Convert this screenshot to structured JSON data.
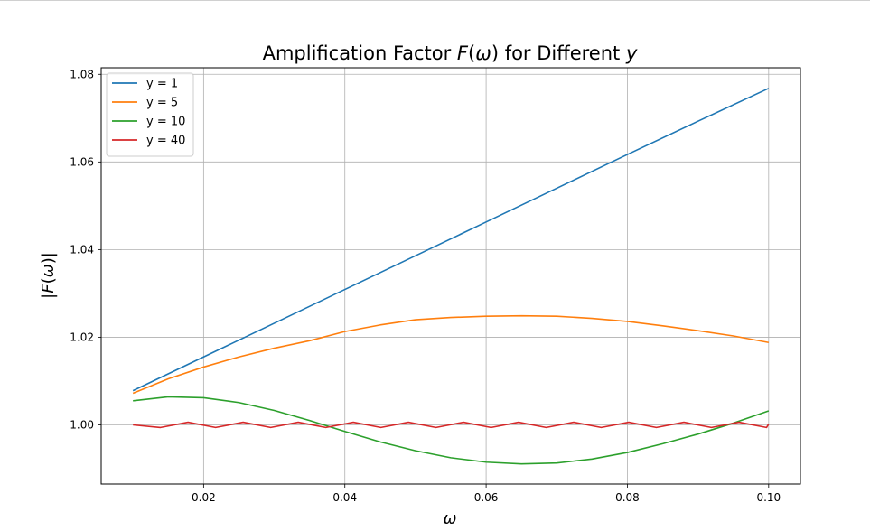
{
  "chart_data": {
    "type": "line",
    "title": "Amplification Factor F(ω) for Different y",
    "title_parts": {
      "prefix": "Amplification Factor ",
      "func": "F",
      "open": "(",
      "omega": "ω",
      "close": ")",
      "middle": " for Different ",
      "var": "y"
    },
    "xlabel": "ω",
    "ylabel": "|F(ω)|",
    "ylabel_parts": {
      "bar1": "|",
      "func": "F",
      "open": "(",
      "omega": "ω",
      "close": ")",
      "bar2": "|"
    },
    "xlim": [
      0.0055,
      0.1045
    ],
    "ylim": [
      0.9865,
      1.0815
    ],
    "xticks": [
      0.02,
      0.04,
      0.06,
      0.08,
      0.1
    ],
    "xtick_labels": [
      "0.02",
      "0.04",
      "0.06",
      "0.08",
      "0.10"
    ],
    "yticks": [
      1.0,
      1.02,
      1.04,
      1.06,
      1.08
    ],
    "ytick_labels": [
      "1.00",
      "1.02",
      "1.04",
      "1.06",
      "1.08"
    ],
    "grid": true,
    "legend_position": "top-left",
    "series": [
      {
        "name": "y = 1",
        "color": "#1f77b4",
        "x": [
          0.01,
          0.02,
          0.03,
          0.04,
          0.05,
          0.06,
          0.07,
          0.08,
          0.09,
          0.1
        ],
        "y": [
          1.0078,
          1.0155,
          1.0232,
          1.0309,
          1.0386,
          1.0463,
          1.054,
          1.0617,
          1.0693,
          1.0768
        ]
      },
      {
        "name": "y = 5",
        "color": "#ff7f0e",
        "x": [
          0.01,
          0.015,
          0.02,
          0.025,
          0.03,
          0.035,
          0.04,
          0.045,
          0.05,
          0.055,
          0.06,
          0.065,
          0.07,
          0.075,
          0.08,
          0.085,
          0.09,
          0.095,
          0.1
        ],
        "y": [
          1.0072,
          1.0105,
          1.0132,
          1.0155,
          1.0175,
          1.0192,
          1.0213,
          1.0228,
          1.024,
          1.0245,
          1.0248,
          1.0249,
          1.0248,
          1.0243,
          1.0236,
          1.0226,
          1.0215,
          1.0203,
          1.0188
        ]
      },
      {
        "name": "y = 10",
        "color": "#2ca02c",
        "x": [
          0.01,
          0.015,
          0.02,
          0.025,
          0.03,
          0.035,
          0.04,
          0.045,
          0.05,
          0.055,
          0.06,
          0.065,
          0.07,
          0.075,
          0.08,
          0.085,
          0.09,
          0.095,
          0.1
        ],
        "y": [
          1.0055,
          1.0064,
          1.0062,
          1.0051,
          1.0033,
          1.001,
          0.9985,
          0.9961,
          0.9941,
          0.9925,
          0.9915,
          0.9911,
          0.9913,
          0.9922,
          0.9937,
          0.9957,
          0.9979,
          1.0004,
          1.0032
        ]
      },
      {
        "name": "y = 40",
        "color": "#d62728",
        "x": [
          0.01,
          0.0139,
          0.0178,
          0.0217,
          0.0256,
          0.0295,
          0.0334,
          0.0373,
          0.0412,
          0.0451,
          0.049,
          0.0529,
          0.0568,
          0.0607,
          0.0646,
          0.0685,
          0.0724,
          0.0763,
          0.0802,
          0.0841,
          0.088,
          0.0919,
          0.0958,
          0.0997,
          0.1
        ],
        "y": [
          1.0,
          0.9994,
          1.0006,
          0.9994,
          1.0006,
          0.9994,
          1.0006,
          0.9994,
          1.0006,
          0.9994,
          1.0006,
          0.9994,
          1.0006,
          0.9994,
          1.0006,
          0.9994,
          1.0006,
          0.9994,
          1.0006,
          0.9994,
          1.0006,
          0.9994,
          1.0006,
          0.9994,
          1.0002
        ]
      }
    ]
  }
}
